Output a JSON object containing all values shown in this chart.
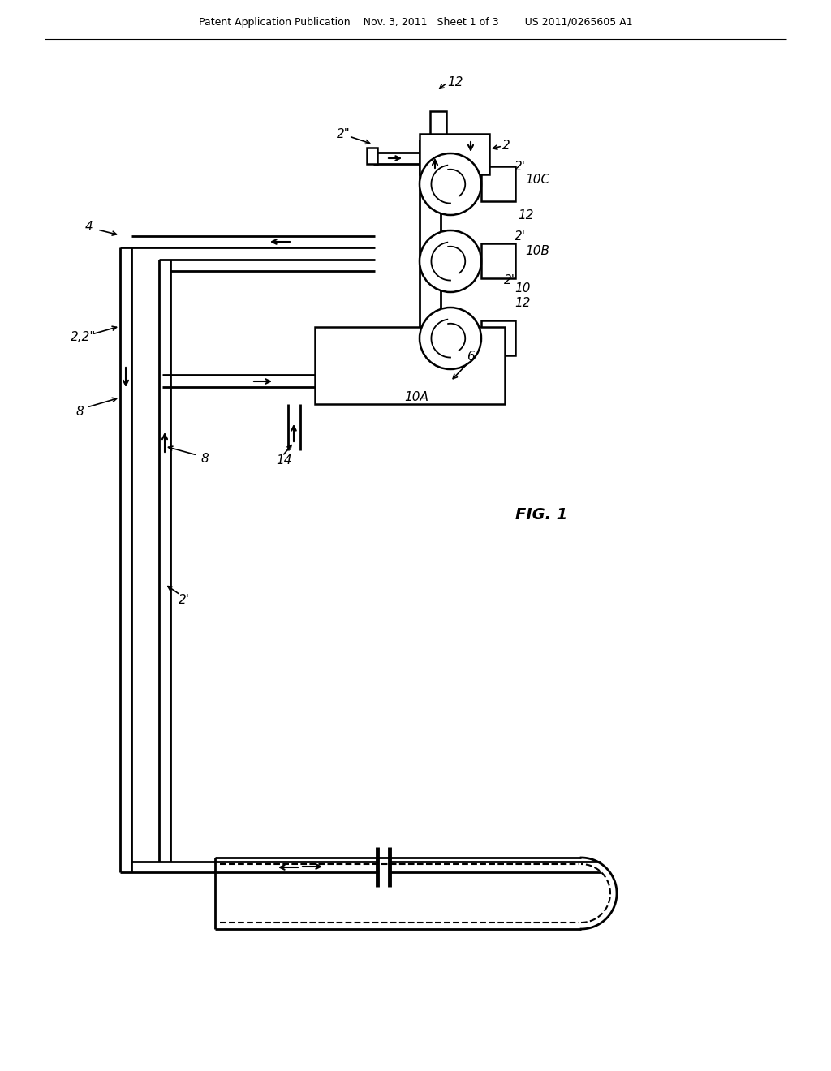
{
  "bg_color": "#ffffff",
  "header_text": "Patent Application Publication    Nov. 3, 2011   Sheet 1 of 3        US 2011/0265605 A1",
  "fig_label": "FIG. 1",
  "pump_labels": [
    "10C",
    "10B",
    "10A"
  ],
  "other_labels": {
    "12_top": "12",
    "2_top": "2",
    "2pp": "2\"",
    "10C": "10C",
    "2p_10C": "2'",
    "12_10C": "12",
    "10B": "10B",
    "2p_10B": "2'",
    "12_10B": "12",
    "10": "10",
    "2p_10A": "2'",
    "10A": "10A",
    "14": "14",
    "4": "4",
    "8a": "8",
    "8b": "8",
    "2p_inner": "2'",
    "2_2pp": "2,2\"",
    "6": "6"
  }
}
